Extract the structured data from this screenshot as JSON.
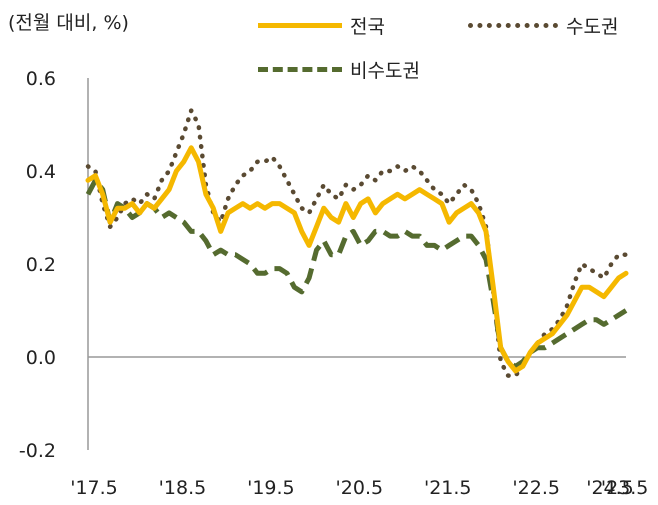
{
  "chart_data": {
    "type": "line",
    "ylabel": "(전월 대비, %)",
    "ylim": [
      -0.2,
      0.6
    ],
    "yticks": [
      "0.6",
      "0.4",
      "0.2",
      "0.0",
      "-0.2"
    ],
    "ytick_values": [
      0.6,
      0.4,
      0.2,
      0.0,
      -0.2
    ],
    "xtick_labels": [
      "'17.5",
      "'18.5",
      "'19.5",
      "'20.5",
      "'21.5",
      "'22.5",
      "'23.5",
      "'24.5"
    ],
    "x_start": "2017-05",
    "x_end": "2024-06",
    "legend": [
      "전국",
      "수도권",
      "비수도권"
    ],
    "series": [
      {
        "name": "전국",
        "color": "#f5b800",
        "style": "solid",
        "values": [
          0.38,
          0.39,
          0.35,
          0.29,
          0.32,
          0.32,
          0.33,
          0.31,
          0.33,
          0.32,
          0.34,
          0.36,
          0.4,
          0.42,
          0.45,
          0.42,
          0.35,
          0.32,
          0.27,
          0.31,
          0.32,
          0.33,
          0.32,
          0.33,
          0.32,
          0.33,
          0.33,
          0.32,
          0.31,
          0.27,
          0.24,
          0.28,
          0.32,
          0.3,
          0.29,
          0.33,
          0.3,
          0.33,
          0.34,
          0.31,
          0.33,
          0.34,
          0.35,
          0.34,
          0.35,
          0.36,
          0.35,
          0.34,
          0.33,
          0.29,
          0.31,
          0.32,
          0.33,
          0.31,
          0.27,
          0.15,
          0.02,
          -0.01,
          -0.03,
          -0.02,
          0.01,
          0.03,
          0.04,
          0.05,
          0.07,
          0.09,
          0.12,
          0.15,
          0.15,
          0.14,
          0.13,
          0.15,
          0.17,
          0.18
        ]
      },
      {
        "name": "수도권",
        "color": "#5a4a32",
        "style": "dotted",
        "values": [
          0.41,
          0.4,
          0.33,
          0.28,
          0.3,
          0.33,
          0.34,
          0.33,
          0.35,
          0.34,
          0.38,
          0.4,
          0.44,
          0.48,
          0.53,
          0.5,
          0.37,
          0.31,
          0.29,
          0.34,
          0.37,
          0.39,
          0.4,
          0.42,
          0.42,
          0.43,
          0.41,
          0.38,
          0.35,
          0.32,
          0.31,
          0.34,
          0.37,
          0.35,
          0.34,
          0.37,
          0.36,
          0.37,
          0.39,
          0.38,
          0.4,
          0.4,
          0.41,
          0.4,
          0.41,
          0.4,
          0.38,
          0.36,
          0.35,
          0.33,
          0.35,
          0.37,
          0.36,
          0.33,
          0.28,
          0.14,
          -0.01,
          -0.04,
          -0.04,
          -0.02,
          0.01,
          0.03,
          0.05,
          0.06,
          0.08,
          0.11,
          0.16,
          0.2,
          0.19,
          0.18,
          0.17,
          0.2,
          0.22,
          0.22
        ]
      },
      {
        "name": "비수도권",
        "color": "#556b2f",
        "style": "dashed",
        "values": [
          0.35,
          0.38,
          0.36,
          0.29,
          0.33,
          0.32,
          0.3,
          0.31,
          0.33,
          0.32,
          0.3,
          0.31,
          0.3,
          0.29,
          0.27,
          0.27,
          0.25,
          0.22,
          0.23,
          0.22,
          0.22,
          0.21,
          0.2,
          0.18,
          0.18,
          0.19,
          0.19,
          0.18,
          0.15,
          0.14,
          0.17,
          0.23,
          0.25,
          0.22,
          0.22,
          0.26,
          0.27,
          0.24,
          0.25,
          0.27,
          0.27,
          0.26,
          0.26,
          0.27,
          0.26,
          0.26,
          0.24,
          0.24,
          0.23,
          0.24,
          0.25,
          0.26,
          0.26,
          0.24,
          0.21,
          0.12,
          0.02,
          -0.01,
          -0.02,
          -0.01,
          0.01,
          0.02,
          0.02,
          0.03,
          0.04,
          0.05,
          0.06,
          0.07,
          0.08,
          0.08,
          0.07,
          0.08,
          0.09,
          0.1
        ]
      }
    ],
    "grid": false,
    "legend_position": "top"
  }
}
